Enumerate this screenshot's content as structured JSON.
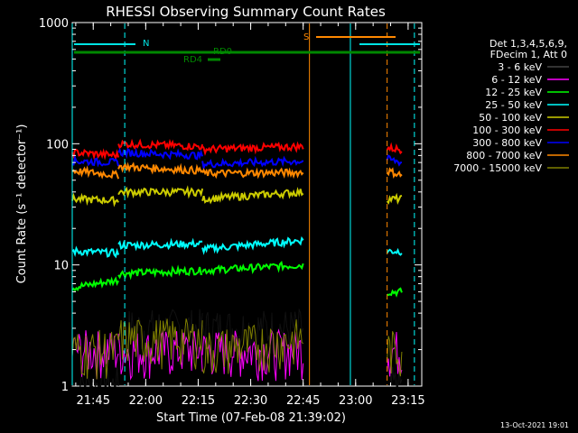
{
  "chart_data": {
    "type": "line",
    "title": "RHESSI Observing Summary Count Rates",
    "xlabel": "Start Time (07-Feb-08 21:39:02)",
    "ylabel": "Count Rate (s⁻¹ detector⁻¹)",
    "yscale": "log",
    "ylim": [
      1,
      1000
    ],
    "xlim_minutes": [
      21.65,
      23.315
    ],
    "x_ticks": [
      "21:45",
      "22:00",
      "22:15",
      "22:30",
      "22:45",
      "23:00",
      "23:15"
    ],
    "y_ticks": [
      "1",
      "10",
      "100",
      "1000"
    ],
    "legend_header": [
      "Det 1,3,4,5,6,9,",
      "FDecim 1, Att 0"
    ],
    "legend_position": "right",
    "footer_date": "13-Oct-2021 19:01",
    "annotations": [
      {
        "label": "N",
        "color": "#00e5e5"
      },
      {
        "label": "S",
        "color": "#ff8800"
      },
      {
        "label": "RD0",
        "color": "#008800"
      },
      {
        "label": "RD4",
        "color": "#008800"
      }
    ],
    "series": [
      {
        "name": "3 - 6 keV",
        "color": "#000000",
        "segments": [
          [
            [
              21.65,
              1.0
            ],
            [
              21.87,
              1.0
            ]
          ],
          [
            [
              21.87,
              3.0
            ],
            [
              22.27,
              3.0
            ]
          ],
          [
            [
              22.27,
              3.0
            ],
            [
              22.75,
              3.0
            ]
          ],
          [
            [
              23.15,
              1.0
            ],
            [
              23.22,
              1.0
            ]
          ]
        ]
      },
      {
        "name": "6 - 12 keV",
        "color": "#ff00ff",
        "segments": [
          [
            [
              21.65,
              2.0
            ],
            [
              21.87,
              2.0
            ]
          ],
          [
            [
              21.87,
              2.0
            ],
            [
              22.27,
              2.0
            ]
          ],
          [
            [
              22.27,
              2.0
            ],
            [
              22.75,
              2.0
            ]
          ],
          [
            [
              23.15,
              2.0
            ],
            [
              23.22,
              2.0
            ]
          ]
        ]
      },
      {
        "name": "12 - 25 keV",
        "color": "#00ff00",
        "segments": [
          [
            [
              21.65,
              6.5
            ],
            [
              21.87,
              7.5
            ]
          ],
          [
            [
              21.87,
              8.5
            ],
            [
              22.27,
              9.0
            ]
          ],
          [
            [
              22.27,
              9.0
            ],
            [
              22.75,
              10.0
            ]
          ],
          [
            [
              23.15,
              6.0
            ],
            [
              23.22,
              6.0
            ]
          ]
        ]
      },
      {
        "name": "25 - 50 keV",
        "color": "#00ffff",
        "segments": [
          [
            [
              21.65,
              13
            ],
            [
              21.87,
              12.5
            ]
          ],
          [
            [
              21.87,
              14.5
            ],
            [
              22.27,
              15
            ]
          ],
          [
            [
              22.27,
              13.5
            ],
            [
              22.75,
              16
            ]
          ],
          [
            [
              23.15,
              13
            ],
            [
              23.22,
              13
            ]
          ]
        ]
      },
      {
        "name": "50 - 100 keV",
        "color": "#cccc00",
        "segments": [
          [
            [
              21.65,
              35
            ],
            [
              21.87,
              34
            ]
          ],
          [
            [
              21.87,
              40
            ],
            [
              22.27,
              40
            ]
          ],
          [
            [
              22.27,
              35
            ],
            [
              22.75,
              40
            ]
          ],
          [
            [
              23.15,
              35
            ],
            [
              23.22,
              35
            ]
          ]
        ]
      },
      {
        "name": "100 - 300 keV",
        "color": "#ff0000",
        "segments": [
          [
            [
              21.65,
              85
            ],
            [
              21.87,
              80
            ]
          ],
          [
            [
              21.87,
              100
            ],
            [
              22.27,
              95
            ]
          ],
          [
            [
              22.27,
              90
            ],
            [
              22.75,
              95
            ]
          ],
          [
            [
              23.15,
              92
            ],
            [
              23.22,
              90
            ]
          ]
        ]
      },
      {
        "name": "300 - 800 keV",
        "color": "#0000ff",
        "segments": [
          [
            [
              21.65,
              72
            ],
            [
              21.87,
              70
            ]
          ],
          [
            [
              21.87,
              85
            ],
            [
              22.27,
              80
            ]
          ],
          [
            [
              22.27,
              68
            ],
            [
              22.75,
              72
            ]
          ],
          [
            [
              23.15,
              75
            ],
            [
              23.22,
              70
            ]
          ]
        ]
      },
      {
        "name": "800 - 7000 keV",
        "color": "#ff8800",
        "segments": [
          [
            [
              21.65,
              60
            ],
            [
              21.87,
              55
            ]
          ],
          [
            [
              21.87,
              65
            ],
            [
              22.27,
              60
            ]
          ],
          [
            [
              22.27,
              57
            ],
            [
              22.75,
              58
            ]
          ],
          [
            [
              23.15,
              60
            ],
            [
              23.22,
              55
            ]
          ]
        ]
      },
      {
        "name": "7000 - 15000 keV",
        "color": "#808000",
        "segments": [
          [
            [
              21.65,
              2.0
            ],
            [
              21.87,
              2.0
            ]
          ],
          [
            [
              21.87,
              2.5
            ],
            [
              22.27,
              2.5
            ]
          ],
          [
            [
              22.27,
              2.0
            ],
            [
              22.75,
              2.5
            ]
          ],
          [
            [
              23.15,
              2.0
            ],
            [
              23.22,
              2.0
            ]
          ]
        ]
      }
    ],
    "vertical_markers": [
      {
        "x": 21.65,
        "color": "#00ffff",
        "style": "solid"
      },
      {
        "x": 21.9,
        "color": "#00ffff",
        "style": "dashed"
      },
      {
        "x": 22.78,
        "color": "#ff8800",
        "style": "solid"
      },
      {
        "x": 22.975,
        "color": "#00ffff",
        "style": "solid"
      },
      {
        "x": 23.15,
        "color": "#ff8800",
        "style": "dashed"
      },
      {
        "x": 23.28,
        "color": "#00ffff",
        "style": "dashed"
      }
    ]
  }
}
